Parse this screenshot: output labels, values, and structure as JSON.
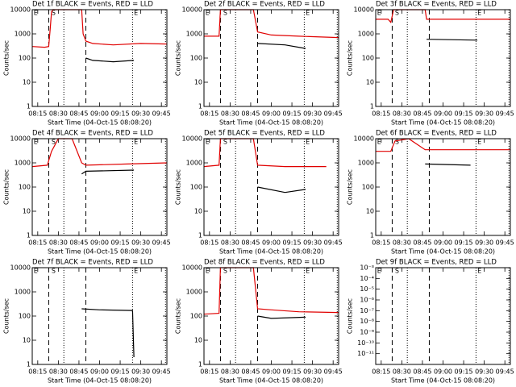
{
  "chart_data": [
    {
      "type": "line",
      "title": "Det 1f BLACK = Events, RED = LLD",
      "xlabel": "Start Time (04-Oct-15 08:08:20)",
      "ylabel": "Counts/sec",
      "xlim": [
        11,
        109
      ],
      "xticks": [
        {
          "value": 15,
          "label": "08:15"
        },
        {
          "value": 30,
          "label": "08:30"
        },
        {
          "value": 45,
          "label": "08:45"
        },
        {
          "value": 60,
          "label": "09:00"
        },
        {
          "value": 75,
          "label": "09:15"
        },
        {
          "value": 90,
          "label": "09:30"
        },
        {
          "value": 105,
          "label": "09:45"
        }
      ],
      "ylim": [
        1,
        10000
      ],
      "yticks": [
        1,
        10,
        100,
        1000,
        10000
      ],
      "ylog": true,
      "dashed": [
        23,
        50
      ],
      "dotted": [
        34,
        84,
        108
      ],
      "annotations": [
        {
          "text": "E",
          "x": 12
        },
        {
          "text": "S",
          "x": 25
        },
        {
          "text": "E",
          "x": 85
        }
      ],
      "series": [
        {
          "color": "#e00000",
          "x": [
            11,
            20,
            23,
            24,
            25,
            26,
            47,
            48,
            50,
            55,
            70,
            90,
            109
          ],
          "values": [
            300,
            280,
            300,
            1500,
            8000,
            10000,
            10000,
            1000,
            500,
            400,
            350,
            400,
            380
          ]
        },
        {
          "color": "#000000",
          "x": [
            50,
            55,
            70,
            85
          ],
          "values": [
            100,
            80,
            70,
            80
          ]
        }
      ]
    },
    {
      "type": "line",
      "title": "Det 2f BLACK = Events, RED = LLD",
      "xlabel": "Start Time (04-Oct-15 08:08:20)",
      "ylabel": "Counts/sec",
      "xlim": [
        11,
        109
      ],
      "xticks": [
        {
          "value": 15,
          "label": "08:15"
        },
        {
          "value": 30,
          "label": "08:30"
        },
        {
          "value": 45,
          "label": "08:45"
        },
        {
          "value": 60,
          "label": "09:00"
        },
        {
          "value": 75,
          "label": "09:15"
        },
        {
          "value": 90,
          "label": "09:30"
        },
        {
          "value": 105,
          "label": "09:45"
        }
      ],
      "ylim": [
        1,
        10000
      ],
      "yticks": [
        1,
        10,
        100,
        1000,
        10000
      ],
      "ylog": true,
      "dashed": [
        23,
        50
      ],
      "dotted": [
        34,
        84,
        108
      ],
      "annotations": [
        {
          "text": "E",
          "x": 12
        },
        {
          "text": "S",
          "x": 25
        },
        {
          "text": "E",
          "x": 85
        }
      ],
      "series": [
        {
          "color": "#e00000",
          "x": [
            11,
            22,
            23,
            47,
            50,
            60,
            80,
            109
          ],
          "values": [
            800,
            800,
            10000,
            10000,
            1200,
            900,
            800,
            700
          ]
        },
        {
          "color": "#000000",
          "x": [
            50,
            70,
            85
          ],
          "values": [
            400,
            350,
            250
          ]
        }
      ]
    },
    {
      "type": "line",
      "title": "Det 3f BLACK = Events, RED = LLD",
      "xlabel": "Start Time (04-Oct-15 08:08:20)",
      "ylabel": "Counts/sec",
      "xlim": [
        11,
        109
      ],
      "xticks": [
        {
          "value": 15,
          "label": "08:15"
        },
        {
          "value": 30,
          "label": "08:30"
        },
        {
          "value": 45,
          "label": "08:45"
        },
        {
          "value": 60,
          "label": "09:00"
        },
        {
          "value": 75,
          "label": "09:15"
        },
        {
          "value": 90,
          "label": "09:30"
        },
        {
          "value": 105,
          "label": "09:45"
        }
      ],
      "ylim": [
        1,
        10000
      ],
      "yticks": [
        1,
        10,
        100,
        1000,
        10000
      ],
      "ylog": true,
      "dashed": [
        23,
        50
      ],
      "dotted": [
        34,
        84,
        108
      ],
      "annotations": [
        {
          "text": "E",
          "x": 12
        },
        {
          "text": "S",
          "x": 25
        },
        {
          "text": "E",
          "x": 85
        }
      ],
      "series": [
        {
          "color": "#e00000",
          "x": [
            11,
            20,
            22,
            24,
            47,
            48,
            109
          ],
          "values": [
            4000,
            4000,
            3000,
            10000,
            10000,
            4000,
            4000
          ]
        },
        {
          "color": "#000000",
          "x": [
            48,
            85
          ],
          "values": [
            600,
            550
          ]
        }
      ]
    },
    {
      "type": "line",
      "title": "Det 4f BLACK = Events, RED = LLD",
      "xlabel": "Start Time (04-Oct-15 08:08:20)",
      "ylabel": "Counts/sec",
      "xlim": [
        11,
        109
      ],
      "xticks": [
        {
          "value": 15,
          "label": "08:15"
        },
        {
          "value": 30,
          "label": "08:30"
        },
        {
          "value": 45,
          "label": "08:45"
        },
        {
          "value": 60,
          "label": "09:00"
        },
        {
          "value": 75,
          "label": "09:15"
        },
        {
          "value": 90,
          "label": "09:30"
        },
        {
          "value": 105,
          "label": "09:45"
        }
      ],
      "ylim": [
        1,
        10000
      ],
      "yticks": [
        1,
        10,
        100,
        1000,
        10000
      ],
      "ylog": true,
      "dashed": [
        23,
        50
      ],
      "dotted": [
        34,
        84,
        108
      ],
      "annotations": [
        {
          "text": "E",
          "x": 12
        },
        {
          "text": "S",
          "x": 25
        },
        {
          "text": "E",
          "x": 85
        }
      ],
      "series": [
        {
          "color": "#e00000",
          "x": [
            11,
            22,
            25,
            30,
            40,
            47,
            50,
            80,
            109
          ],
          "values": [
            700,
            800,
            3000,
            10000,
            10000,
            1000,
            800,
            900,
            1000
          ]
        },
        {
          "color": "#000000",
          "x": [
            47,
            50,
            85
          ],
          "values": [
            350,
            450,
            500
          ]
        }
      ]
    },
    {
      "type": "line",
      "title": "Det 5f BLACK = Events, RED = LLD",
      "xlabel": "Start Time (04-Oct-15 08:08:20)",
      "ylabel": "Counts/sec",
      "xlim": [
        11,
        109
      ],
      "xticks": [
        {
          "value": 15,
          "label": "08:15"
        },
        {
          "value": 30,
          "label": "08:30"
        },
        {
          "value": 45,
          "label": "08:45"
        },
        {
          "value": 60,
          "label": "09:00"
        },
        {
          "value": 75,
          "label": "09:15"
        },
        {
          "value": 90,
          "label": "09:30"
        },
        {
          "value": 105,
          "label": "09:45"
        }
      ],
      "ylim": [
        1,
        10000
      ],
      "yticks": [
        1,
        10,
        100,
        1000,
        10000
      ],
      "ylog": true,
      "dashed": [
        23,
        50
      ],
      "dotted": [
        34,
        84,
        108
      ],
      "annotations": [
        {
          "text": "E",
          "x": 12
        },
        {
          "text": "S",
          "x": 25
        },
        {
          "text": "E",
          "x": 85
        }
      ],
      "series": [
        {
          "color": "#e00000",
          "x": [
            11,
            22,
            23,
            47,
            50,
            70,
            100
          ],
          "values": [
            700,
            800,
            10000,
            10000,
            800,
            700,
            700
          ]
        },
        {
          "color": "#000000",
          "x": [
            50,
            70,
            85
          ],
          "values": [
            100,
            60,
            80
          ]
        }
      ]
    },
    {
      "type": "line",
      "title": "Det 6f BLACK = Events, RED = LLD",
      "xlabel": "Start Time (04-Oct-15 08:08:20)",
      "ylabel": "Counts/sec",
      "xlim": [
        11,
        109
      ],
      "xticks": [
        {
          "value": 15,
          "label": "08:15"
        },
        {
          "value": 30,
          "label": "08:30"
        },
        {
          "value": 45,
          "label": "08:45"
        },
        {
          "value": 60,
          "label": "09:00"
        },
        {
          "value": 75,
          "label": "09:15"
        },
        {
          "value": 90,
          "label": "09:30"
        },
        {
          "value": 105,
          "label": "09:45"
        }
      ],
      "ylim": [
        1,
        10000
      ],
      "yticks": [
        1,
        10,
        100,
        1000,
        10000
      ],
      "ylog": true,
      "dashed": [
        23,
        50
      ],
      "dotted": [
        34,
        84,
        108
      ],
      "annotations": [
        {
          "text": "E",
          "x": 12
        },
        {
          "text": "S",
          "x": 25
        },
        {
          "text": "E",
          "x": 85
        }
      ],
      "series": [
        {
          "color": "#e00000",
          "x": [
            11,
            22,
            25,
            35,
            47,
            109
          ],
          "values": [
            3000,
            3000,
            8000,
            10000,
            3500,
            3500
          ]
        },
        {
          "color": "#000000",
          "x": [
            47,
            80
          ],
          "values": [
            900,
            800
          ]
        }
      ]
    },
    {
      "type": "line",
      "title": "Det 7f BLACK = Events, RED = LLD",
      "xlabel": "Start Time (04-Oct-15 08:08:20)",
      "ylabel": "Counts/sec",
      "xlim": [
        11,
        109
      ],
      "xticks": [
        {
          "value": 15,
          "label": "08:15"
        },
        {
          "value": 30,
          "label": "08:30"
        },
        {
          "value": 45,
          "label": "08:45"
        },
        {
          "value": 60,
          "label": "09:00"
        },
        {
          "value": 75,
          "label": "09:15"
        },
        {
          "value": 90,
          "label": "09:30"
        },
        {
          "value": 105,
          "label": "09:45"
        }
      ],
      "ylim": [
        1,
        10000
      ],
      "yticks": [
        1,
        10,
        100,
        1000,
        10000
      ],
      "ylog": true,
      "dashed": [
        23,
        50
      ],
      "dotted": [
        34,
        84,
        108
      ],
      "annotations": [
        {
          "text": "E",
          "x": 12
        },
        {
          "text": "S",
          "x": 25
        },
        {
          "text": "E",
          "x": 85
        }
      ],
      "series": [
        {
          "color": "#000000",
          "x": [
            47,
            60,
            84,
            85
          ],
          "values": [
            200,
            180,
            170,
            2
          ]
        }
      ]
    },
    {
      "type": "line",
      "title": "Det 8f BLACK = Events, RED = LLD",
      "xlabel": "Start Time (04-Oct-15 08:08:20)",
      "ylabel": "Counts/sec",
      "xlim": [
        11,
        109
      ],
      "xticks": [
        {
          "value": 15,
          "label": "08:15"
        },
        {
          "value": 30,
          "label": "08:30"
        },
        {
          "value": 45,
          "label": "08:45"
        },
        {
          "value": 60,
          "label": "09:00"
        },
        {
          "value": 75,
          "label": "09:15"
        },
        {
          "value": 90,
          "label": "09:30"
        },
        {
          "value": 105,
          "label": "09:45"
        }
      ],
      "ylim": [
        1,
        10000
      ],
      "yticks": [
        1,
        10,
        100,
        1000,
        10000
      ],
      "ylog": true,
      "dashed": [
        23,
        50
      ],
      "dotted": [
        34,
        84,
        108
      ],
      "annotations": [
        {
          "text": "E",
          "x": 12
        },
        {
          "text": "S",
          "x": 25
        },
        {
          "text": "E",
          "x": 85
        }
      ],
      "series": [
        {
          "color": "#e00000",
          "x": [
            11,
            22,
            23,
            47,
            50,
            60,
            80,
            109
          ],
          "values": [
            120,
            130,
            10000,
            10000,
            200,
            180,
            150,
            140
          ]
        },
        {
          "color": "#000000",
          "x": [
            50,
            60,
            85
          ],
          "values": [
            100,
            80,
            90
          ]
        }
      ]
    },
    {
      "type": "line",
      "title": "Det 9f BLACK = Events, RED = LLD",
      "xlabel": "Start Time (04-Oct-15 08:08:20)",
      "ylabel": "Counts/sec",
      "xlim": [
        11,
        109
      ],
      "xticks": [
        {
          "value": 15,
          "label": "08:15"
        },
        {
          "value": 30,
          "label": "08:30"
        },
        {
          "value": 45,
          "label": "08:45"
        },
        {
          "value": 60,
          "label": "09:00"
        },
        {
          "value": 75,
          "label": "09:15"
        },
        {
          "value": 90,
          "label": "09:30"
        },
        {
          "value": 105,
          "label": "09:45"
        }
      ],
      "ylim": [
        1e-12,
        0.001
      ],
      "yticks": [
        {
          "value": 1e-11,
          "label": "10⁻¹¹"
        },
        {
          "value": 1e-10,
          "label": "10⁻¹⁰"
        },
        {
          "value": 1e-09,
          "label": "10⁻⁹"
        },
        {
          "value": 1e-08,
          "label": "10⁻⁸"
        },
        {
          "value": 1e-07,
          "label": "10⁻⁷"
        },
        {
          "value": 1e-06,
          "label": "10⁻⁶"
        },
        {
          "value": 1e-05,
          "label": "10⁻⁵"
        },
        {
          "value": 0.0001,
          "label": "10⁻⁴"
        },
        {
          "value": 0.001,
          "label": "10⁻³"
        }
      ],
      "ylog": true,
      "dashed": [
        23,
        50
      ],
      "dotted": [
        34,
        84,
        108
      ],
      "annotations": [
        {
          "text": "E",
          "x": 12
        },
        {
          "text": "S",
          "x": 25
        },
        {
          "text": "E",
          "x": 85
        }
      ],
      "series": []
    }
  ]
}
